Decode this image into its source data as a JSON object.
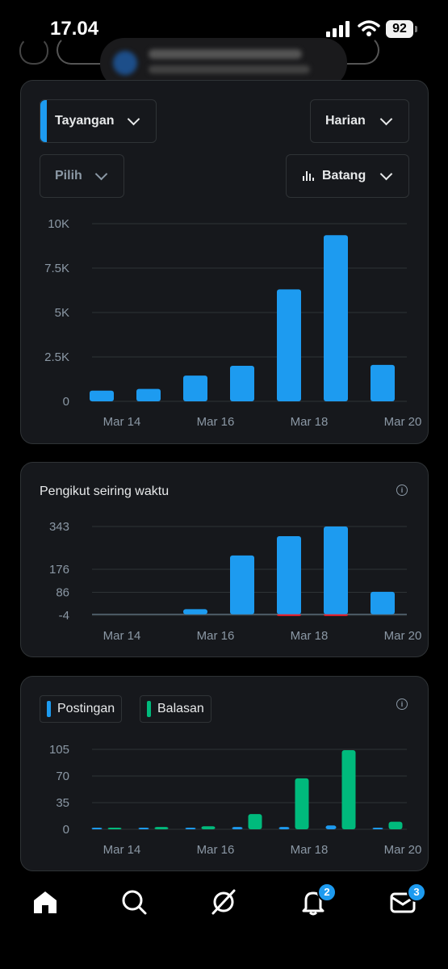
{
  "status_bar": {
    "time": "17.04",
    "battery": "92"
  },
  "views_card": {
    "metric_dropdown": "Tayangan",
    "period_dropdown": "Harian",
    "select_dropdown": "Pilih",
    "chart_type_dropdown": "Batang"
  },
  "followers_card": {
    "title": "Pengikut seiring waktu"
  },
  "posts_card": {
    "legend": [
      {
        "label": "Postingan",
        "color": "#1d9bf0"
      },
      {
        "label": "Balasan",
        "color": "#00ba7c"
      }
    ]
  },
  "nav": {
    "items": [
      "home-icon",
      "search-icon",
      "grok-icon",
      "notifications-icon",
      "messages-icon"
    ],
    "notifications_badge": "2",
    "messages_badge": "3"
  },
  "chart_data": [
    {
      "type": "bar",
      "categories": [
        "Mar 14",
        "Mar 15",
        "Mar 16",
        "Mar 17",
        "Mar 18",
        "Mar 19",
        "Mar 20"
      ],
      "series": [
        {
          "values": [
            600,
            700,
            1450,
            2000,
            6300,
            9350,
            2050
          ],
          "color": "#1d9bf0"
        }
      ],
      "y_ticks": [
        "10K",
        "7.5K",
        "5K",
        "2.5K",
        "0"
      ],
      "y_tick_values": [
        10000,
        7500,
        5000,
        2500,
        0
      ],
      "x_tick_labels": [
        "Mar 14",
        "Mar 16",
        "Mar 18",
        "Mar 20"
      ],
      "ylim": [
        0,
        10000
      ],
      "grid": true
    },
    {
      "type": "bar",
      "title": "Pengikut seiring waktu",
      "categories": [
        "Mar 14",
        "Mar 15",
        "Mar 16",
        "Mar 17",
        "Mar 18",
        "Mar 19",
        "Mar 20"
      ],
      "series": [
        {
          "values": [
            0,
            0,
            20,
            230,
            305,
            343,
            88
          ],
          "color": "#1d9bf0"
        },
        {
          "values": [
            0,
            0,
            0,
            0,
            -2,
            -4,
            0
          ],
          "color": "#f4212e"
        }
      ],
      "y_ticks": [
        "343",
        "176",
        "86",
        "-4"
      ],
      "y_tick_values": [
        343,
        176,
        86,
        -4
      ],
      "x_tick_labels": [
        "Mar 14",
        "Mar 16",
        "Mar 18",
        "Mar 20"
      ],
      "ylim": [
        -4,
        343
      ],
      "grid": true
    },
    {
      "type": "bar",
      "categories": [
        "Mar 14",
        "Mar 15",
        "Mar 16",
        "Mar 17",
        "Mar 18",
        "Mar 19",
        "Mar 20"
      ],
      "series": [
        {
          "name": "Postingan",
          "values": [
            0,
            2,
            1,
            3,
            3,
            5,
            1
          ],
          "color": "#1d9bf0"
        },
        {
          "name": "Balasan",
          "values": [
            1,
            3,
            4,
            20,
            67,
            104,
            10
          ],
          "color": "#00ba7c"
        }
      ],
      "y_ticks": [
        "105",
        "70",
        "35",
        "0"
      ],
      "y_tick_values": [
        105,
        70,
        35,
        0
      ],
      "x_tick_labels": [
        "Mar 14",
        "Mar 16",
        "Mar 18",
        "Mar 20"
      ],
      "ylim": [
        0,
        105
      ],
      "grid": true
    }
  ]
}
